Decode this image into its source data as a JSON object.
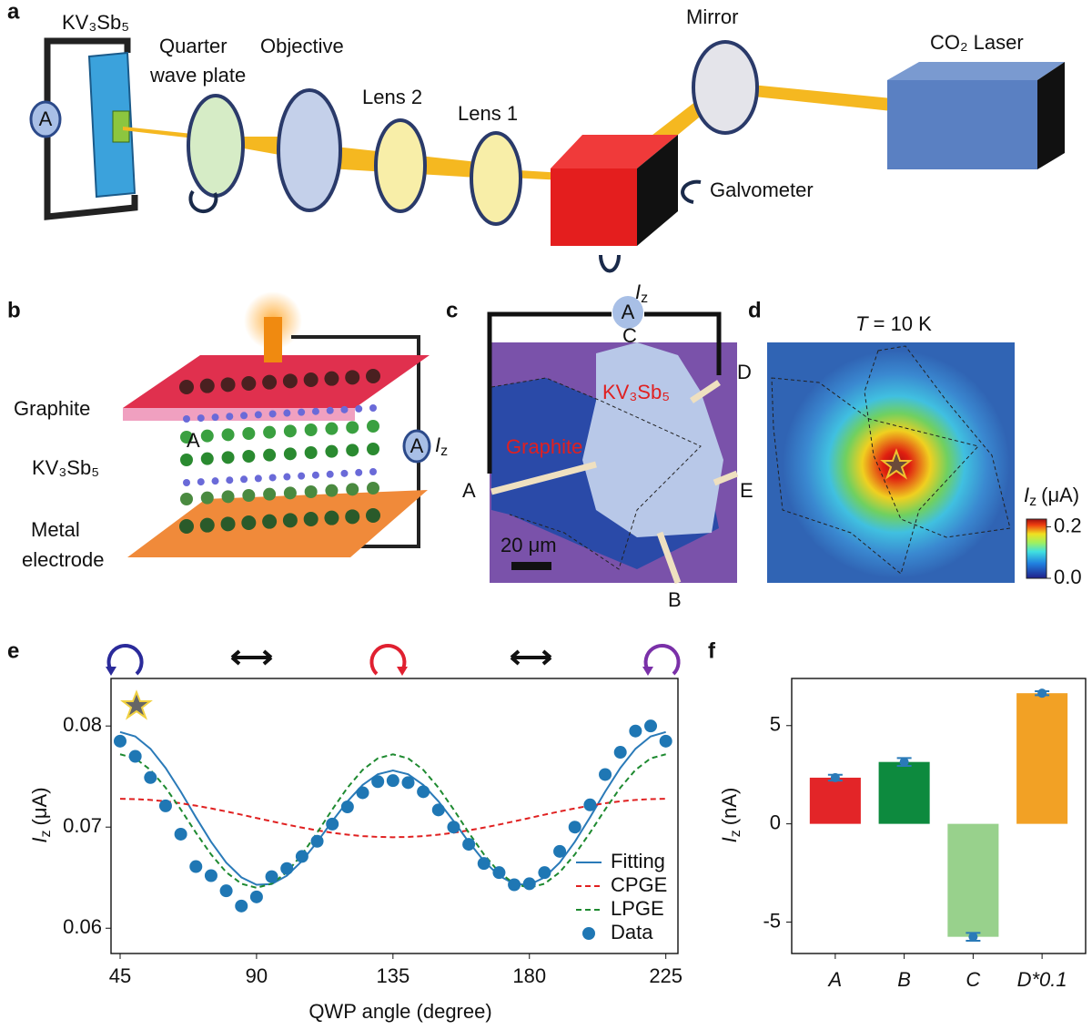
{
  "panel_a": {
    "label": "a",
    "sample": "KV₃Sb₅",
    "ammeter": "A",
    "qwp": [
      "Quarter",
      "wave plate"
    ],
    "objective": "Objective",
    "lens2": "Lens 2",
    "lens1": "Lens 1",
    "mirror": "Mirror",
    "laser": "CO₂ Laser",
    "galvo": "Galvometer"
  },
  "panel_b": {
    "label": "b",
    "top": "Graphite",
    "middle": "KV₃Sb₅",
    "bottom": [
      "Metal",
      "electrode"
    ],
    "atom": "A",
    "ammeter": "A",
    "current": {
      "main": "I",
      "sub": "z"
    }
  },
  "panel_c": {
    "label": "c",
    "ammeter": "A",
    "current": {
      "main": "I",
      "sub": "z"
    },
    "contacts": [
      "C",
      "D",
      "A",
      "E",
      "B"
    ],
    "flake": "KV₃Sb₅",
    "graphite": "Graphite",
    "scale": "20 μm"
  },
  "panel_d": {
    "label": "d",
    "title": {
      "symbol": "T",
      "text": "= 10 K"
    },
    "colorbar_label": {
      "main": "I",
      "sub": "z",
      "unit": "(μA)"
    },
    "colorbar_lim": [
      0,
      0.23
    ],
    "colorbar_ticks": [
      {
        "value": 0.2,
        "label": "0.2"
      },
      {
        "value": 0,
        "label": "0.0"
      }
    ]
  },
  "chart_data": [
    {
      "type": "line",
      "label": "e",
      "xlabel": "QWP angle (degree)",
      "ylabel": {
        "main": "I",
        "sub": "z",
        "unit": "(μA)"
      },
      "x": [
        45,
        50,
        55,
        60,
        65,
        70,
        75,
        80,
        85,
        90,
        95,
        100,
        105,
        110,
        115,
        120,
        125,
        130,
        135,
        140,
        145,
        150,
        155,
        160,
        165,
        170,
        175,
        180,
        185,
        190,
        195,
        200,
        205,
        210,
        215,
        220,
        225
      ],
      "xlim": [
        42,
        229
      ],
      "ylim": [
        0.0575,
        0.0847
      ],
      "xticks": [
        45,
        90,
        135,
        180,
        225
      ],
      "yticks": [
        0.06,
        0.07,
        0.08
      ],
      "legend": "lower right",
      "series": [
        {
          "name": "Fitting",
          "color": "#2a7ab8",
          "style": "solid",
          "values": [
            0.0794,
            0.07897,
            0.07775,
            0.07585,
            0.07351,
            0.07097,
            0.06855,
            0.06649,
            0.06503,
            0.0643,
            0.06437,
            0.06519,
            0.06665,
            0.06853,
            0.07059,
            0.07255,
            0.07417,
            0.07523,
            0.0756,
            0.07523,
            0.07417,
            0.07255,
            0.07059,
            0.06853,
            0.06665,
            0.06519,
            0.06437,
            0.0643,
            0.06503,
            0.06649,
            0.06855,
            0.07097,
            0.07351,
            0.07585,
            0.07775,
            0.07897,
            0.0794
          ]
        },
        {
          "name": "CPGE",
          "color": "#e02020",
          "style": "dashed",
          "values": [
            0.0728,
            0.07277,
            0.07269,
            0.07255,
            0.07236,
            0.07212,
            0.07185,
            0.07155,
            0.07123,
            0.0709,
            0.07057,
            0.07025,
            0.06995,
            0.06968,
            0.06944,
            0.06925,
            0.06911,
            0.06903,
            0.069,
            0.06903,
            0.06911,
            0.06925,
            0.06944,
            0.06968,
            0.06995,
            0.07025,
            0.07057,
            0.0709,
            0.07123,
            0.07155,
            0.07185,
            0.07212,
            0.07236,
            0.07255,
            0.07269,
            0.07277,
            0.0728
          ]
        },
        {
          "name": "LPGE",
          "color": "#1e8a30",
          "style": "dashed",
          "values": [
            0.0772,
            0.0768,
            0.07566,
            0.0739,
            0.07175,
            0.06945,
            0.0673,
            0.06554,
            0.0644,
            0.064,
            0.0644,
            0.06554,
            0.0673,
            0.06945,
            0.07175,
            0.0739,
            0.07566,
            0.0768,
            0.0772,
            0.0768,
            0.07566,
            0.0739,
            0.07175,
            0.06945,
            0.0673,
            0.06554,
            0.0644,
            0.064,
            0.0644,
            0.06554,
            0.0673,
            0.06945,
            0.07175,
            0.0739,
            0.07566,
            0.0768,
            0.0772
          ]
        },
        {
          "name": "Data",
          "color": "#1f77b4",
          "style": "markers",
          "values": [
            0.0785,
            0.077,
            0.0749,
            0.0721,
            0.0693,
            0.0661,
            0.0652,
            0.0637,
            0.0622,
            0.0631,
            0.0651,
            0.0659,
            0.0671,
            0.0686,
            0.0703,
            0.072,
            0.0734,
            0.0745,
            0.0746,
            0.0744,
            0.0735,
            0.0717,
            0.07,
            0.0683,
            0.0664,
            0.0655,
            0.0643,
            0.0644,
            0.0655,
            0.0676,
            0.07,
            0.0722,
            0.0752,
            0.0774,
            0.0795,
            0.08,
            0.0785
          ]
        }
      ]
    },
    {
      "type": "bar",
      "label": "f",
      "ylabel": {
        "main": "I",
        "sub": "z",
        "unit": "(nA)"
      },
      "categories": [
        "A",
        "B",
        "C",
        "D*0.1"
      ],
      "values": [
        2.35,
        3.15,
        -5.75,
        6.65
      ],
      "errors": [
        0.15,
        0.2,
        0.2,
        0.1
      ],
      "colors": [
        "#e32528",
        "#0d8a3e",
        "#98d18c",
        "#f2a125"
      ],
      "error_color": "#2a7ab8",
      "ylim": [
        -6.6,
        7.4
      ],
      "yticks": [
        -5,
        0,
        5
      ]
    }
  ]
}
